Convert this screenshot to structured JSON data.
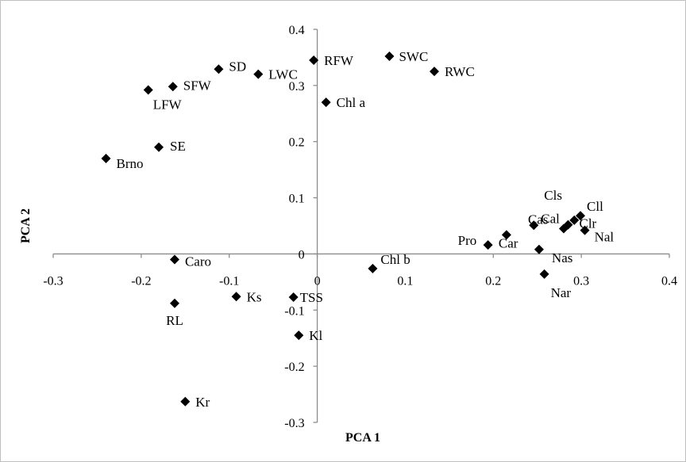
{
  "chart_data": {
    "type": "scatter",
    "title": "",
    "xlabel": "PCA 1",
    "ylabel": "PCA 2",
    "xlim": [
      -0.3,
      0.4
    ],
    "ylim": [
      -0.3,
      0.4
    ],
    "x_ticks": [
      "-0.3",
      "-0.2",
      "-0.1",
      "0",
      "0.1",
      "0.2",
      "0.3",
      "0.4"
    ],
    "y_ticks": [
      "0.4",
      "0.3",
      "0.2",
      "0.1",
      "0",
      "-0.1",
      "-0.2",
      "-0.3"
    ],
    "grid": false,
    "marker": "diamond",
    "marker_color": "#000000",
    "points": [
      {
        "label": "SWC",
        "x": 0.082,
        "y": 0.352
      },
      {
        "label": "RWC",
        "x": 0.133,
        "y": 0.325
      },
      {
        "label": "RFW",
        "x": -0.004,
        "y": 0.345
      },
      {
        "label": "SD",
        "x": -0.112,
        "y": 0.329
      },
      {
        "label": "LWC",
        "x": -0.067,
        "y": 0.32
      },
      {
        "label": "SFW",
        "x": -0.164,
        "y": 0.298
      },
      {
        "label": "LFW",
        "x": -0.192,
        "y": 0.292
      },
      {
        "label": "Chl a",
        "x": 0.01,
        "y": 0.27
      },
      {
        "label": "SE",
        "x": -0.18,
        "y": 0.19
      },
      {
        "label": "Brno",
        "x": -0.24,
        "y": 0.17
      },
      {
        "label": "Cls",
        "x": 0.292,
        "y": 0.06
      },
      {
        "label": "Cll",
        "x": 0.299,
        "y": 0.068
      },
      {
        "label": "Clr",
        "x": 0.285,
        "y": 0.052
      },
      {
        "label": "Cal",
        "x": 0.246,
        "y": 0.051
      },
      {
        "label": "Cas",
        "x": 0.28,
        "y": 0.045
      },
      {
        "label": "Nal",
        "x": 0.304,
        "y": 0.042
      },
      {
        "label": "Car",
        "x": 0.215,
        "y": 0.034
      },
      {
        "label": "Pro",
        "x": 0.194,
        "y": 0.016
      },
      {
        "label": "Nas",
        "x": 0.252,
        "y": 0.008
      },
      {
        "label": "Caro",
        "x": -0.162,
        "y": -0.01
      },
      {
        "label": "Chl b",
        "x": 0.063,
        "y": -0.026
      },
      {
        "label": "Nar",
        "x": 0.258,
        "y": -0.036
      },
      {
        "label": "Ks",
        "x": -0.092,
        "y": -0.076
      },
      {
        "label": "TSS",
        "x": -0.027,
        "y": -0.077
      },
      {
        "label": "RL",
        "x": -0.162,
        "y": -0.088
      },
      {
        "label": "Kl",
        "x": -0.021,
        "y": -0.145
      },
      {
        "label": "Kr",
        "x": -0.15,
        "y": -0.263
      }
    ]
  }
}
